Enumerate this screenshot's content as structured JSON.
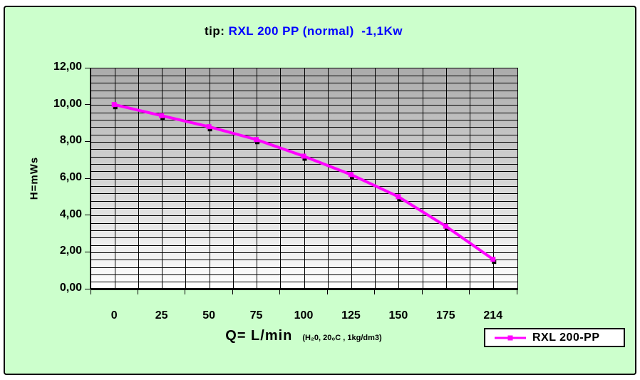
{
  "chart_data": {
    "type": "line",
    "title_prefix": "tip:",
    "title_main": " RXL 200 PP (normal)  -1,1Kw",
    "title_color": "#0000ff",
    "categories": [
      "0",
      "25",
      "50",
      "75",
      "100",
      "125",
      "150",
      "175",
      "214"
    ],
    "series": [
      {
        "name": "RXL 200-PP",
        "color": "#ff00ff",
        "marker": "square",
        "values": [
          10.0,
          9.4,
          8.8,
          8.1,
          7.2,
          6.2,
          5.0,
          3.4,
          1.6
        ]
      }
    ],
    "xlabel": "Q= L/min",
    "xlabel_note": "(H₂0, 20₀C , 1kg/dm3)",
    "ylabel": "H=mWs",
    "x_axis_type": "category",
    "ylim": [
      0,
      12
    ],
    "y_major_step": 2,
    "y_minor_step": 0.4,
    "y_tick_labels": [
      "0,00",
      "2,00",
      "4,00",
      "6,00",
      "8,00",
      "10,00",
      "12,00"
    ],
    "grid": true,
    "legend_position": "bottom-right",
    "colors": {
      "background": "#ccffcc",
      "plot_gradient_top": "#ababab",
      "plot_gradient_bottom": "#ffffff",
      "grid": "#000000",
      "text": "#000000"
    }
  }
}
